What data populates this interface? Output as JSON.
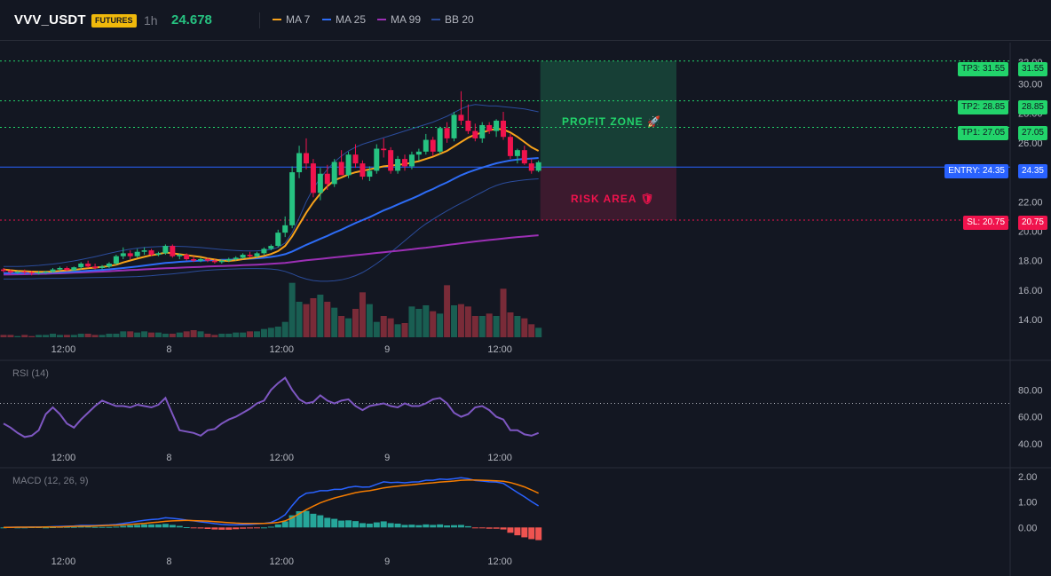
{
  "header": {
    "symbol": "VVV_USDT",
    "market_badge": "FUTURES",
    "timeframe": "1h",
    "last_price": "24.678",
    "indicators": [
      {
        "label": "MA 7",
        "color": "#f7a21b"
      },
      {
        "label": "MA 25",
        "color": "#2d6cf6"
      },
      {
        "label": "MA 99",
        "color": "#9c2fb5"
      },
      {
        "label": "BB 20",
        "color": "#2b4c9b"
      }
    ]
  },
  "levels": {
    "tp3": {
      "label": "TP3: 31.55",
      "price": "31.55",
      "color": "#22d46b"
    },
    "tp2": {
      "label": "TP2: 28.85",
      "price": "28.85",
      "color": "#22d46b"
    },
    "tp1": {
      "label": "TP1: 27.05",
      "price": "27.05",
      "color": "#22d46b"
    },
    "entry": {
      "label": "ENTRY: 24.35",
      "price": "24.35",
      "color": "#2962ff"
    },
    "sl": {
      "label": "SL: 20.75",
      "price": "20.75",
      "color": "#f0134d"
    }
  },
  "zones": {
    "profit": "PROFIT ZONE 🚀",
    "risk": "RISK AREA 🛡"
  },
  "panels": {
    "rsi_title": "RSI (14)",
    "macd_title": "MACD (12, 26, 9)"
  },
  "chart_data": [
    {
      "type": "candlestick",
      "title": "VVV_USDT",
      "x_ticks": [
        "12:00",
        "8",
        "12:00",
        "9",
        "12:00"
      ],
      "y_ticks": [
        "14.00",
        "16.00",
        "18.00",
        "20.00",
        "22.00",
        "24.00",
        "26.00",
        "28.00",
        "30.00"
      ],
      "ylim": [
        12.8,
        32.8
      ],
      "up_color": "#26c281",
      "down_color": "#f0134d",
      "candles": [
        [
          17.4,
          17.5,
          17.2,
          17.3
        ],
        [
          17.3,
          17.4,
          17.1,
          17.2
        ],
        [
          17.2,
          17.3,
          17.1,
          17.25
        ],
        [
          17.25,
          17.4,
          17.1,
          17.2
        ],
        [
          17.2,
          17.3,
          17.0,
          17.15
        ],
        [
          17.15,
          17.3,
          17.05,
          17.2
        ],
        [
          17.2,
          17.3,
          17.1,
          17.25
        ],
        [
          17.25,
          17.5,
          17.2,
          17.4
        ],
        [
          17.4,
          17.6,
          17.3,
          17.5
        ],
        [
          17.5,
          17.6,
          17.3,
          17.35
        ],
        [
          17.35,
          17.6,
          17.3,
          17.55
        ],
        [
          17.55,
          17.9,
          17.4,
          17.8
        ],
        [
          17.8,
          18.0,
          17.5,
          17.6
        ],
        [
          17.6,
          17.8,
          17.4,
          17.5
        ],
        [
          17.5,
          17.7,
          17.4,
          17.6
        ],
        [
          17.6,
          17.9,
          17.5,
          17.8
        ],
        [
          17.8,
          18.4,
          17.7,
          18.3
        ],
        [
          18.3,
          18.9,
          18.1,
          18.5
        ],
        [
          18.5,
          18.7,
          18.1,
          18.3
        ],
        [
          18.3,
          18.8,
          18.2,
          18.6
        ],
        [
          18.6,
          18.9,
          18.4,
          18.7
        ],
        [
          18.7,
          18.8,
          18.3,
          18.4
        ],
        [
          18.4,
          18.6,
          18.3,
          18.5
        ],
        [
          18.5,
          19.1,
          18.4,
          19.0
        ],
        [
          19.0,
          19.1,
          18.2,
          18.3
        ],
        [
          18.3,
          18.5,
          18.1,
          18.4
        ],
        [
          18.4,
          18.5,
          18.0,
          18.1
        ],
        [
          18.1,
          18.3,
          17.9,
          18.0
        ],
        [
          18.0,
          18.2,
          17.9,
          18.1
        ],
        [
          18.1,
          18.2,
          17.9,
          18.0
        ],
        [
          18.0,
          18.1,
          17.8,
          17.9
        ],
        [
          17.9,
          18.1,
          17.8,
          18.0
        ],
        [
          18.0,
          18.2,
          17.9,
          18.1
        ],
        [
          18.1,
          18.3,
          18.0,
          18.2
        ],
        [
          18.2,
          18.5,
          18.1,
          18.4
        ],
        [
          18.4,
          18.6,
          18.2,
          18.3
        ],
        [
          18.3,
          18.6,
          18.2,
          18.5
        ],
        [
          18.5,
          18.9,
          18.4,
          18.8
        ],
        [
          18.8,
          19.1,
          18.7,
          19.0
        ],
        [
          19.0,
          20.1,
          18.9,
          19.9
        ],
        [
          19.9,
          21.0,
          19.6,
          20.4
        ],
        [
          20.4,
          24.4,
          20.2,
          24.0
        ],
        [
          24.0,
          25.8,
          23.6,
          25.3
        ],
        [
          25.3,
          26.3,
          24.2,
          24.6
        ],
        [
          24.6,
          24.9,
          22.3,
          22.6
        ],
        [
          22.6,
          24.3,
          22.1,
          23.9
        ],
        [
          23.9,
          24.5,
          22.8,
          23.2
        ],
        [
          23.2,
          24.9,
          23.0,
          24.7
        ],
        [
          24.7,
          25.5,
          23.9,
          23.8
        ],
        [
          23.8,
          25.4,
          23.6,
          25.2
        ],
        [
          25.2,
          25.9,
          24.3,
          24.6
        ],
        [
          24.6,
          24.8,
          23.5,
          23.7
        ],
        [
          23.7,
          24.4,
          23.4,
          24.1
        ],
        [
          24.1,
          25.9,
          23.9,
          25.6
        ],
        [
          25.6,
          26.3,
          25.0,
          25.5
        ],
        [
          25.5,
          25.7,
          23.9,
          24.1
        ],
        [
          24.1,
          25.1,
          23.9,
          24.9
        ],
        [
          24.9,
          25.2,
          24.1,
          24.4
        ],
        [
          24.4,
          25.4,
          24.2,
          25.2
        ],
        [
          25.2,
          25.6,
          24.8,
          25.4
        ],
        [
          25.4,
          26.6,
          25.2,
          26.2
        ],
        [
          26.2,
          26.4,
          25.1,
          25.4
        ],
        [
          25.4,
          27.1,
          25.2,
          27.0
        ],
        [
          27.0,
          27.4,
          26.0,
          26.3
        ],
        [
          26.3,
          28.1,
          26.1,
          27.9
        ],
        [
          27.9,
          29.5,
          27.2,
          27.5
        ],
        [
          27.5,
          28.6,
          26.6,
          26.8
        ],
        [
          26.8,
          27.3,
          26.1,
          26.3
        ],
        [
          26.3,
          27.4,
          26.0,
          27.2
        ],
        [
          27.2,
          27.4,
          26.6,
          26.8
        ],
        [
          26.8,
          27.6,
          26.4,
          27.5
        ],
        [
          27.5,
          28.1,
          26.2,
          26.4
        ],
        [
          26.4,
          26.6,
          24.9,
          25.1
        ],
        [
          25.1,
          25.6,
          24.6,
          25.5
        ],
        [
          25.5,
          25.8,
          24.5,
          24.6
        ],
        [
          24.6,
          24.9,
          23.9,
          24.1
        ],
        [
          24.1,
          24.8,
          24.0,
          24.678
        ]
      ],
      "ma7": [
        17.4,
        17.35,
        17.3,
        17.28,
        17.26,
        17.24,
        17.24,
        17.26,
        17.3,
        17.33,
        17.37,
        17.43,
        17.48,
        17.53,
        17.58,
        17.63,
        17.72,
        17.88,
        18.01,
        18.14,
        18.26,
        18.37,
        18.44,
        18.55,
        18.5,
        18.43,
        18.37,
        18.31,
        18.25,
        18.15,
        18.08,
        18.0,
        17.98,
        18.02,
        18.1,
        18.16,
        18.23,
        18.32,
        18.45,
        18.65,
        19.0,
        19.65,
        20.45,
        21.25,
        21.95,
        22.55,
        23.05,
        23.45,
        23.65,
        23.85,
        24.0,
        24.1,
        24.2,
        24.3,
        24.4,
        24.45,
        24.5,
        24.55,
        24.65,
        24.75,
        24.9,
        25.05,
        25.25,
        25.45,
        25.75,
        26.05,
        26.35,
        26.55,
        26.7,
        26.85,
        26.95,
        26.9,
        26.7,
        26.4,
        26.05,
        25.7,
        25.45
      ],
      "ma25": [
        17.15,
        17.15,
        17.15,
        17.16,
        17.16,
        17.17,
        17.18,
        17.19,
        17.21,
        17.23,
        17.25,
        17.28,
        17.31,
        17.34,
        17.37,
        17.41,
        17.45,
        17.5,
        17.55,
        17.6,
        17.66,
        17.72,
        17.78,
        17.84,
        17.88,
        17.92,
        17.95,
        17.98,
        18.0,
        18.02,
        18.03,
        18.05,
        18.06,
        18.08,
        18.1,
        18.13,
        18.16,
        18.2,
        18.25,
        18.33,
        18.44,
        18.62,
        18.84,
        19.07,
        19.27,
        19.48,
        19.68,
        19.9,
        20.1,
        20.33,
        20.55,
        20.75,
        20.95,
        21.18,
        21.41,
        21.6,
        21.81,
        22.01,
        22.21,
        22.42,
        22.66,
        22.86,
        23.1,
        23.31,
        23.56,
        23.8,
        23.99,
        24.16,
        24.32,
        24.47,
        24.61,
        24.71,
        24.8,
        24.86,
        24.9,
        24.93,
        24.97
      ],
      "ma99": [
        17.05,
        17.06,
        17.07,
        17.08,
        17.09,
        17.1,
        17.11,
        17.13,
        17.14,
        17.16,
        17.18,
        17.2,
        17.22,
        17.24,
        17.26,
        17.28,
        17.31,
        17.33,
        17.36,
        17.38,
        17.41,
        17.43,
        17.46,
        17.48,
        17.5,
        17.52,
        17.54,
        17.56,
        17.58,
        17.6,
        17.62,
        17.63,
        17.65,
        17.67,
        17.69,
        17.71,
        17.73,
        17.75,
        17.78,
        17.81,
        17.85,
        17.9,
        17.96,
        18.02,
        18.07,
        18.12,
        18.17,
        18.22,
        18.27,
        18.32,
        18.37,
        18.42,
        18.47,
        18.52,
        18.57,
        18.62,
        18.67,
        18.72,
        18.77,
        18.83,
        18.88,
        18.94,
        19.0,
        19.06,
        19.12,
        19.18,
        19.24,
        19.3,
        19.35,
        19.4,
        19.45,
        19.5,
        19.55,
        19.6,
        19.64,
        19.68,
        19.72
      ],
      "bb_upper": [
        17.6,
        17.6,
        17.6,
        17.62,
        17.65,
        17.68,
        17.72,
        17.77,
        17.83,
        17.9,
        17.98,
        18.07,
        18.17,
        18.27,
        18.38,
        18.49,
        18.6,
        18.7,
        18.78,
        18.85,
        18.9,
        18.93,
        18.95,
        18.97,
        18.98,
        18.97,
        18.95,
        18.92,
        18.89,
        18.85,
        18.8,
        18.76,
        18.72,
        18.69,
        18.67,
        18.66,
        18.67,
        18.7,
        18.76,
        18.9,
        19.2,
        19.9,
        20.9,
        22.0,
        22.9,
        23.6,
        24.2,
        24.7,
        25.1,
        25.45,
        25.7,
        25.9,
        26.05,
        26.2,
        26.35,
        26.5,
        26.65,
        26.8,
        26.95,
        27.1,
        27.25,
        27.4,
        27.6,
        27.8,
        28.05,
        28.3,
        28.5,
        28.6,
        28.55,
        28.5,
        28.5,
        28.45,
        28.4,
        28.35,
        28.3,
        28.2,
        28.1
      ],
      "bb_lower": [
        16.75,
        16.75,
        16.76,
        16.76,
        16.77,
        16.78,
        16.79,
        16.8,
        16.8,
        16.81,
        16.82,
        16.83,
        16.84,
        16.85,
        16.86,
        16.87,
        16.88,
        16.89,
        16.9,
        16.92,
        16.95,
        16.98,
        17.02,
        17.06,
        17.1,
        17.15,
        17.2,
        17.26,
        17.31,
        17.35,
        17.38,
        17.4,
        17.42,
        17.44,
        17.45,
        17.46,
        17.46,
        17.45,
        17.43,
        17.38,
        17.27,
        17.1,
        16.9,
        16.75,
        16.65,
        16.6,
        16.6,
        16.63,
        16.7,
        16.82,
        16.98,
        17.2,
        17.48,
        17.8,
        18.15,
        18.55,
        18.95,
        19.35,
        19.75,
        20.15,
        20.5,
        20.8,
        21.1,
        21.38,
        21.65,
        21.9,
        22.15,
        22.4,
        22.65,
        22.9,
        23.1,
        23.25,
        23.35,
        23.42,
        23.48,
        23.52,
        23.55
      ],
      "volumes": [
        2,
        2,
        1,
        2,
        1,
        2,
        2,
        3,
        2,
        2,
        2,
        3,
        3,
        2,
        2,
        3,
        3,
        5,
        5,
        4,
        5,
        4,
        4,
        3,
        3,
        4,
        5,
        6,
        5,
        3,
        2,
        3,
        3,
        4,
        4,
        5,
        5,
        7,
        8,
        9,
        13,
        46,
        30,
        28,
        33,
        36,
        30,
        25,
        18,
        16,
        24,
        38,
        28,
        13,
        18,
        16,
        11,
        12,
        26,
        24,
        27,
        22,
        20,
        44,
        27,
        28,
        26,
        18,
        18,
        20,
        18,
        41,
        21,
        18,
        16,
        11,
        8
      ],
      "volume_max": 60
    },
    {
      "type": "line",
      "title": "RSI (14)",
      "y_ticks": [
        "40.00",
        "60.00",
        "80.00"
      ],
      "ylim": [
        38,
        98
      ],
      "overbought": 70,
      "color": "#7e57c2",
      "values": [
        55,
        52,
        48,
        45,
        46,
        50,
        62,
        67,
        62,
        55,
        52,
        58,
        63,
        68,
        72,
        70,
        68,
        68,
        67,
        69,
        68,
        67,
        69,
        74,
        62,
        50,
        49,
        48,
        46,
        50,
        51,
        55,
        58,
        60,
        63,
        66,
        70,
        72,
        80,
        85,
        89,
        80,
        73,
        70,
        71,
        76,
        72,
        70,
        72,
        73,
        68,
        65,
        68,
        69,
        70,
        68,
        67,
        70,
        68,
        68,
        70,
        73,
        74,
        70,
        63,
        60,
        62,
        67,
        68,
        65,
        60,
        58,
        50,
        50,
        47,
        46,
        48
      ],
      "values_end": 48
    },
    {
      "type": "line+bar",
      "title": "MACD (12, 26, 9)",
      "y_ticks": [
        "0.00",
        "1.00",
        "2.00"
      ],
      "ylim": [
        -0.9,
        2.25
      ],
      "macd_color": "#2962ff",
      "signal_color": "#f57c00",
      "hist_up_color": "#26a69a",
      "hist_down_color": "#ef5350",
      "macd": [
        0,
        0.01,
        0.01,
        0.01,
        0.02,
        0.02,
        0.02,
        0.03,
        0.04,
        0.05,
        0.06,
        0.08,
        0.08,
        0.08,
        0.09,
        0.1,
        0.12,
        0.16,
        0.2,
        0.24,
        0.28,
        0.31,
        0.33,
        0.38,
        0.36,
        0.33,
        0.29,
        0.26,
        0.22,
        0.19,
        0.15,
        0.12,
        0.1,
        0.1,
        0.11,
        0.12,
        0.14,
        0.16,
        0.2,
        0.32,
        0.5,
        0.86,
        1.18,
        1.35,
        1.38,
        1.45,
        1.45,
        1.5,
        1.5,
        1.58,
        1.62,
        1.59,
        1.6,
        1.7,
        1.8,
        1.77,
        1.78,
        1.76,
        1.79,
        1.8,
        1.86,
        1.86,
        1.91,
        1.89,
        1.92,
        1.96,
        1.92,
        1.85,
        1.83,
        1.8,
        1.79,
        1.74,
        1.56,
        1.38,
        1.21,
        1.02,
        0.85
      ],
      "signal": [
        0,
        0.0,
        0.01,
        0.01,
        0.01,
        0.01,
        0.02,
        0.02,
        0.02,
        0.03,
        0.04,
        0.05,
        0.05,
        0.06,
        0.07,
        0.08,
        0.09,
        0.1,
        0.12,
        0.14,
        0.16,
        0.19,
        0.21,
        0.24,
        0.26,
        0.27,
        0.28,
        0.27,
        0.26,
        0.25,
        0.23,
        0.21,
        0.19,
        0.17,
        0.16,
        0.16,
        0.16,
        0.16,
        0.17,
        0.2,
        0.26,
        0.38,
        0.54,
        0.7,
        0.84,
        0.97,
        1.07,
        1.16,
        1.23,
        1.3,
        1.37,
        1.42,
        1.45,
        1.5,
        1.56,
        1.6,
        1.63,
        1.66,
        1.68,
        1.71,
        1.74,
        1.76,
        1.79,
        1.81,
        1.83,
        1.86,
        1.87,
        1.87,
        1.86,
        1.85,
        1.84,
        1.82,
        1.77,
        1.69,
        1.6,
        1.48,
        1.35
      ],
      "histogram": [
        0.0,
        0.01,
        0.0,
        0.0,
        0.01,
        0.01,
        0.0,
        0.01,
        0.02,
        0.02,
        0.02,
        0.03,
        0.03,
        0.02,
        0.02,
        0.02,
        0.03,
        0.06,
        0.08,
        0.1,
        0.12,
        0.12,
        0.12,
        0.14,
        0.1,
        0.06,
        0.01,
        -0.01,
        -0.04,
        -0.06,
        -0.08,
        -0.09,
        -0.09,
        -0.07,
        -0.05,
        -0.04,
        -0.02,
        0.0,
        0.03,
        0.12,
        0.24,
        0.48,
        0.64,
        0.65,
        0.54,
        0.48,
        0.38,
        0.34,
        0.27,
        0.28,
        0.25,
        0.17,
        0.15,
        0.2,
        0.24,
        0.17,
        0.15,
        0.1,
        0.11,
        0.09,
        0.12,
        0.1,
        0.12,
        0.08,
        0.09,
        0.1,
        0.05,
        -0.02,
        -0.03,
        -0.05,
        -0.05,
        -0.08,
        -0.21,
        -0.31,
        -0.39,
        -0.46,
        -0.5
      ]
    }
  ]
}
